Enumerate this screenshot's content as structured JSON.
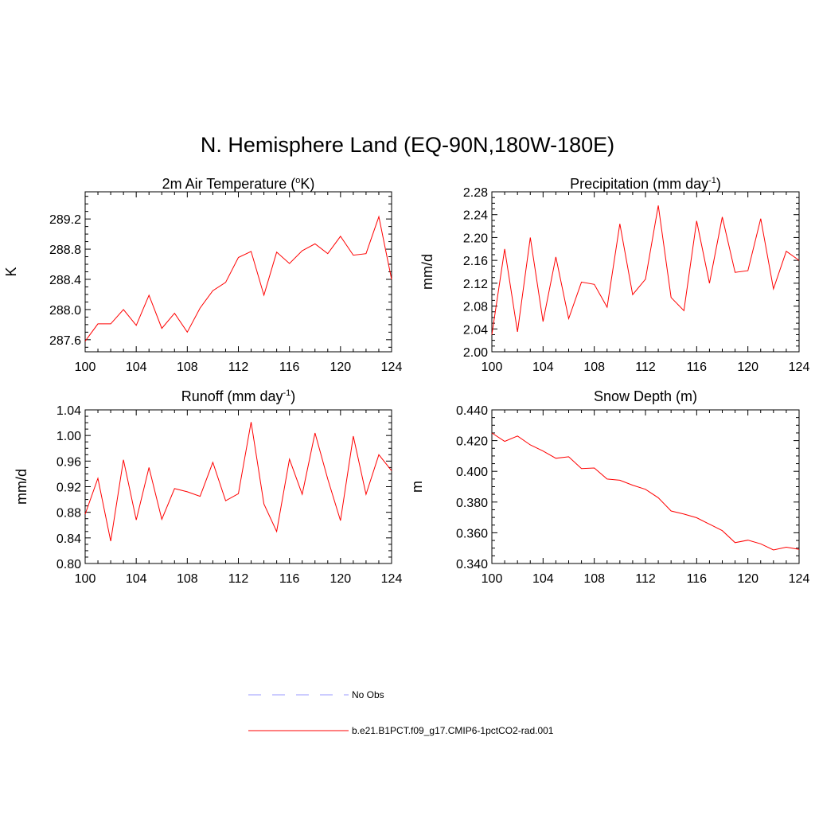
{
  "figure": {
    "title": "N. Hemisphere Land (EQ-90N,180W-180E)"
  },
  "legend": {
    "items": [
      {
        "label": "No Obs",
        "color": "#9999ff",
        "style": "dashed"
      },
      {
        "label": "b.e21.B1PCT.f09_g17.CMIP6-1pctCO2-rad.001",
        "color": "#ff0000",
        "style": "solid"
      }
    ]
  },
  "panels": [
    {
      "title": {
        "pre": "2m Air Temperature (",
        "sup": "o",
        "post": "K)"
      },
      "sup_before_unit": true
    },
    {
      "title": {
        "pre": "Precipitation (mm day",
        "sup": "-1",
        "post": ")"
      }
    },
    {
      "title": {
        "pre": "Runoff (mm day",
        "sup": "-1",
        "post": ")"
      }
    },
    {
      "title": {
        "pre": "Snow Depth (m)",
        "sup": "",
        "post": ""
      }
    }
  ],
  "chart_data": [
    {
      "type": "line",
      "title": "2m Air Temperature (oK)",
      "xlabel": "",
      "ylabel": "K",
      "xlim": [
        100,
        124
      ],
      "ylim": [
        287.44,
        289.56
      ],
      "xticks": [
        "100",
        "104",
        "108",
        "112",
        "116",
        "120",
        "124"
      ],
      "yticks": [
        "287.6",
        "288.0",
        "288.4",
        "288.8",
        "289.2"
      ],
      "x": [
        100,
        101,
        102,
        103,
        104,
        105,
        106,
        107,
        108,
        109,
        110,
        111,
        112,
        113,
        114,
        115,
        116,
        117,
        118,
        119,
        120,
        121,
        122,
        123,
        124
      ],
      "series": [
        {
          "name": "b.e21.B1PCT.f09_g17.CMIP6-1pctCO2-rad.001",
          "color": "#ff0000",
          "values": [
            287.58,
            287.81,
            287.81,
            288.0,
            287.79,
            288.19,
            287.75,
            287.95,
            287.7,
            288.02,
            288.25,
            288.36,
            288.69,
            288.77,
            288.19,
            288.76,
            288.61,
            288.78,
            288.87,
            288.74,
            288.97,
            288.72,
            288.74,
            289.23,
            288.4
          ]
        }
      ]
    },
    {
      "type": "line",
      "title": "Precipitation (mm day-1)",
      "xlabel": "",
      "ylabel": "mm/d",
      "xlim": [
        100,
        124
      ],
      "ylim": [
        2.0,
        2.28
      ],
      "xticks": [
        "100",
        "104",
        "108",
        "112",
        "116",
        "120",
        "124"
      ],
      "yticks": [
        "2.00",
        "2.04",
        "2.08",
        "2.12",
        "2.16",
        "2.20",
        "2.24",
        "2.28"
      ],
      "x": [
        100,
        101,
        102,
        103,
        104,
        105,
        106,
        107,
        108,
        109,
        110,
        111,
        112,
        113,
        114,
        115,
        116,
        117,
        118,
        119,
        120,
        121,
        122,
        123,
        124
      ],
      "series": [
        {
          "name": "b.e21.B1PCT.f09_g17.CMIP6-1pctCO2-rad.001",
          "color": "#ff0000",
          "values": [
            2.03,
            2.18,
            2.035,
            2.2,
            2.053,
            2.166,
            2.058,
            2.122,
            2.118,
            2.078,
            2.224,
            2.1,
            2.127,
            2.256,
            2.095,
            2.072,
            2.229,
            2.12,
            2.236,
            2.139,
            2.142,
            2.233,
            2.11,
            2.176,
            2.16
          ]
        }
      ]
    },
    {
      "type": "line",
      "title": "Runoff (mm day-1)",
      "xlabel": "",
      "ylabel": "mm/d",
      "xlim": [
        100,
        124
      ],
      "ylim": [
        0.8,
        1.04
      ],
      "xticks": [
        "100",
        "104",
        "108",
        "112",
        "116",
        "120",
        "124"
      ],
      "yticks": [
        "0.80",
        "0.84",
        "0.88",
        "0.92",
        "0.96",
        "1.00",
        "1.04"
      ],
      "x": [
        100,
        101,
        102,
        103,
        104,
        105,
        106,
        107,
        108,
        109,
        110,
        111,
        112,
        113,
        114,
        115,
        116,
        117,
        118,
        119,
        120,
        121,
        122,
        123,
        124
      ],
      "series": [
        {
          "name": "b.e21.B1PCT.f09_g17.CMIP6-1pctCO2-rad.001",
          "color": "#ff0000",
          "values": [
            0.877,
            0.933,
            0.835,
            0.962,
            0.868,
            0.95,
            0.869,
            0.917,
            0.912,
            0.905,
            0.958,
            0.898,
            0.909,
            1.021,
            0.893,
            0.85,
            0.963,
            0.908,
            1.004,
            0.932,
            0.867,
            0.999,
            0.908,
            0.97,
            0.945
          ]
        }
      ]
    },
    {
      "type": "line",
      "title": "Snow Depth (m)",
      "xlabel": "",
      "ylabel": "m",
      "xlim": [
        100,
        124
      ],
      "ylim": [
        0.34,
        0.44
      ],
      "xticks": [
        "100",
        "104",
        "108",
        "112",
        "116",
        "120",
        "124"
      ],
      "yticks": [
        "0.340",
        "0.360",
        "0.380",
        "0.400",
        "0.420",
        "0.440"
      ],
      "x": [
        100,
        101,
        102,
        103,
        104,
        105,
        106,
        107,
        108,
        109,
        110,
        111,
        112,
        113,
        114,
        115,
        116,
        117,
        118,
        119,
        120,
        121,
        122,
        123,
        124
      ],
      "series": [
        {
          "name": "b.e21.B1PCT.f09_g17.CMIP6-1pctCO2-rad.001",
          "color": "#ff0000",
          "values": [
            0.425,
            0.4195,
            0.423,
            0.4172,
            0.4132,
            0.4085,
            0.4095,
            0.4018,
            0.4022,
            0.395,
            0.3942,
            0.391,
            0.3883,
            0.3828,
            0.3742,
            0.3722,
            0.3698,
            0.3656,
            0.3614,
            0.3536,
            0.3552,
            0.3528,
            0.3488,
            0.3506,
            0.3492
          ]
        }
      ]
    }
  ]
}
